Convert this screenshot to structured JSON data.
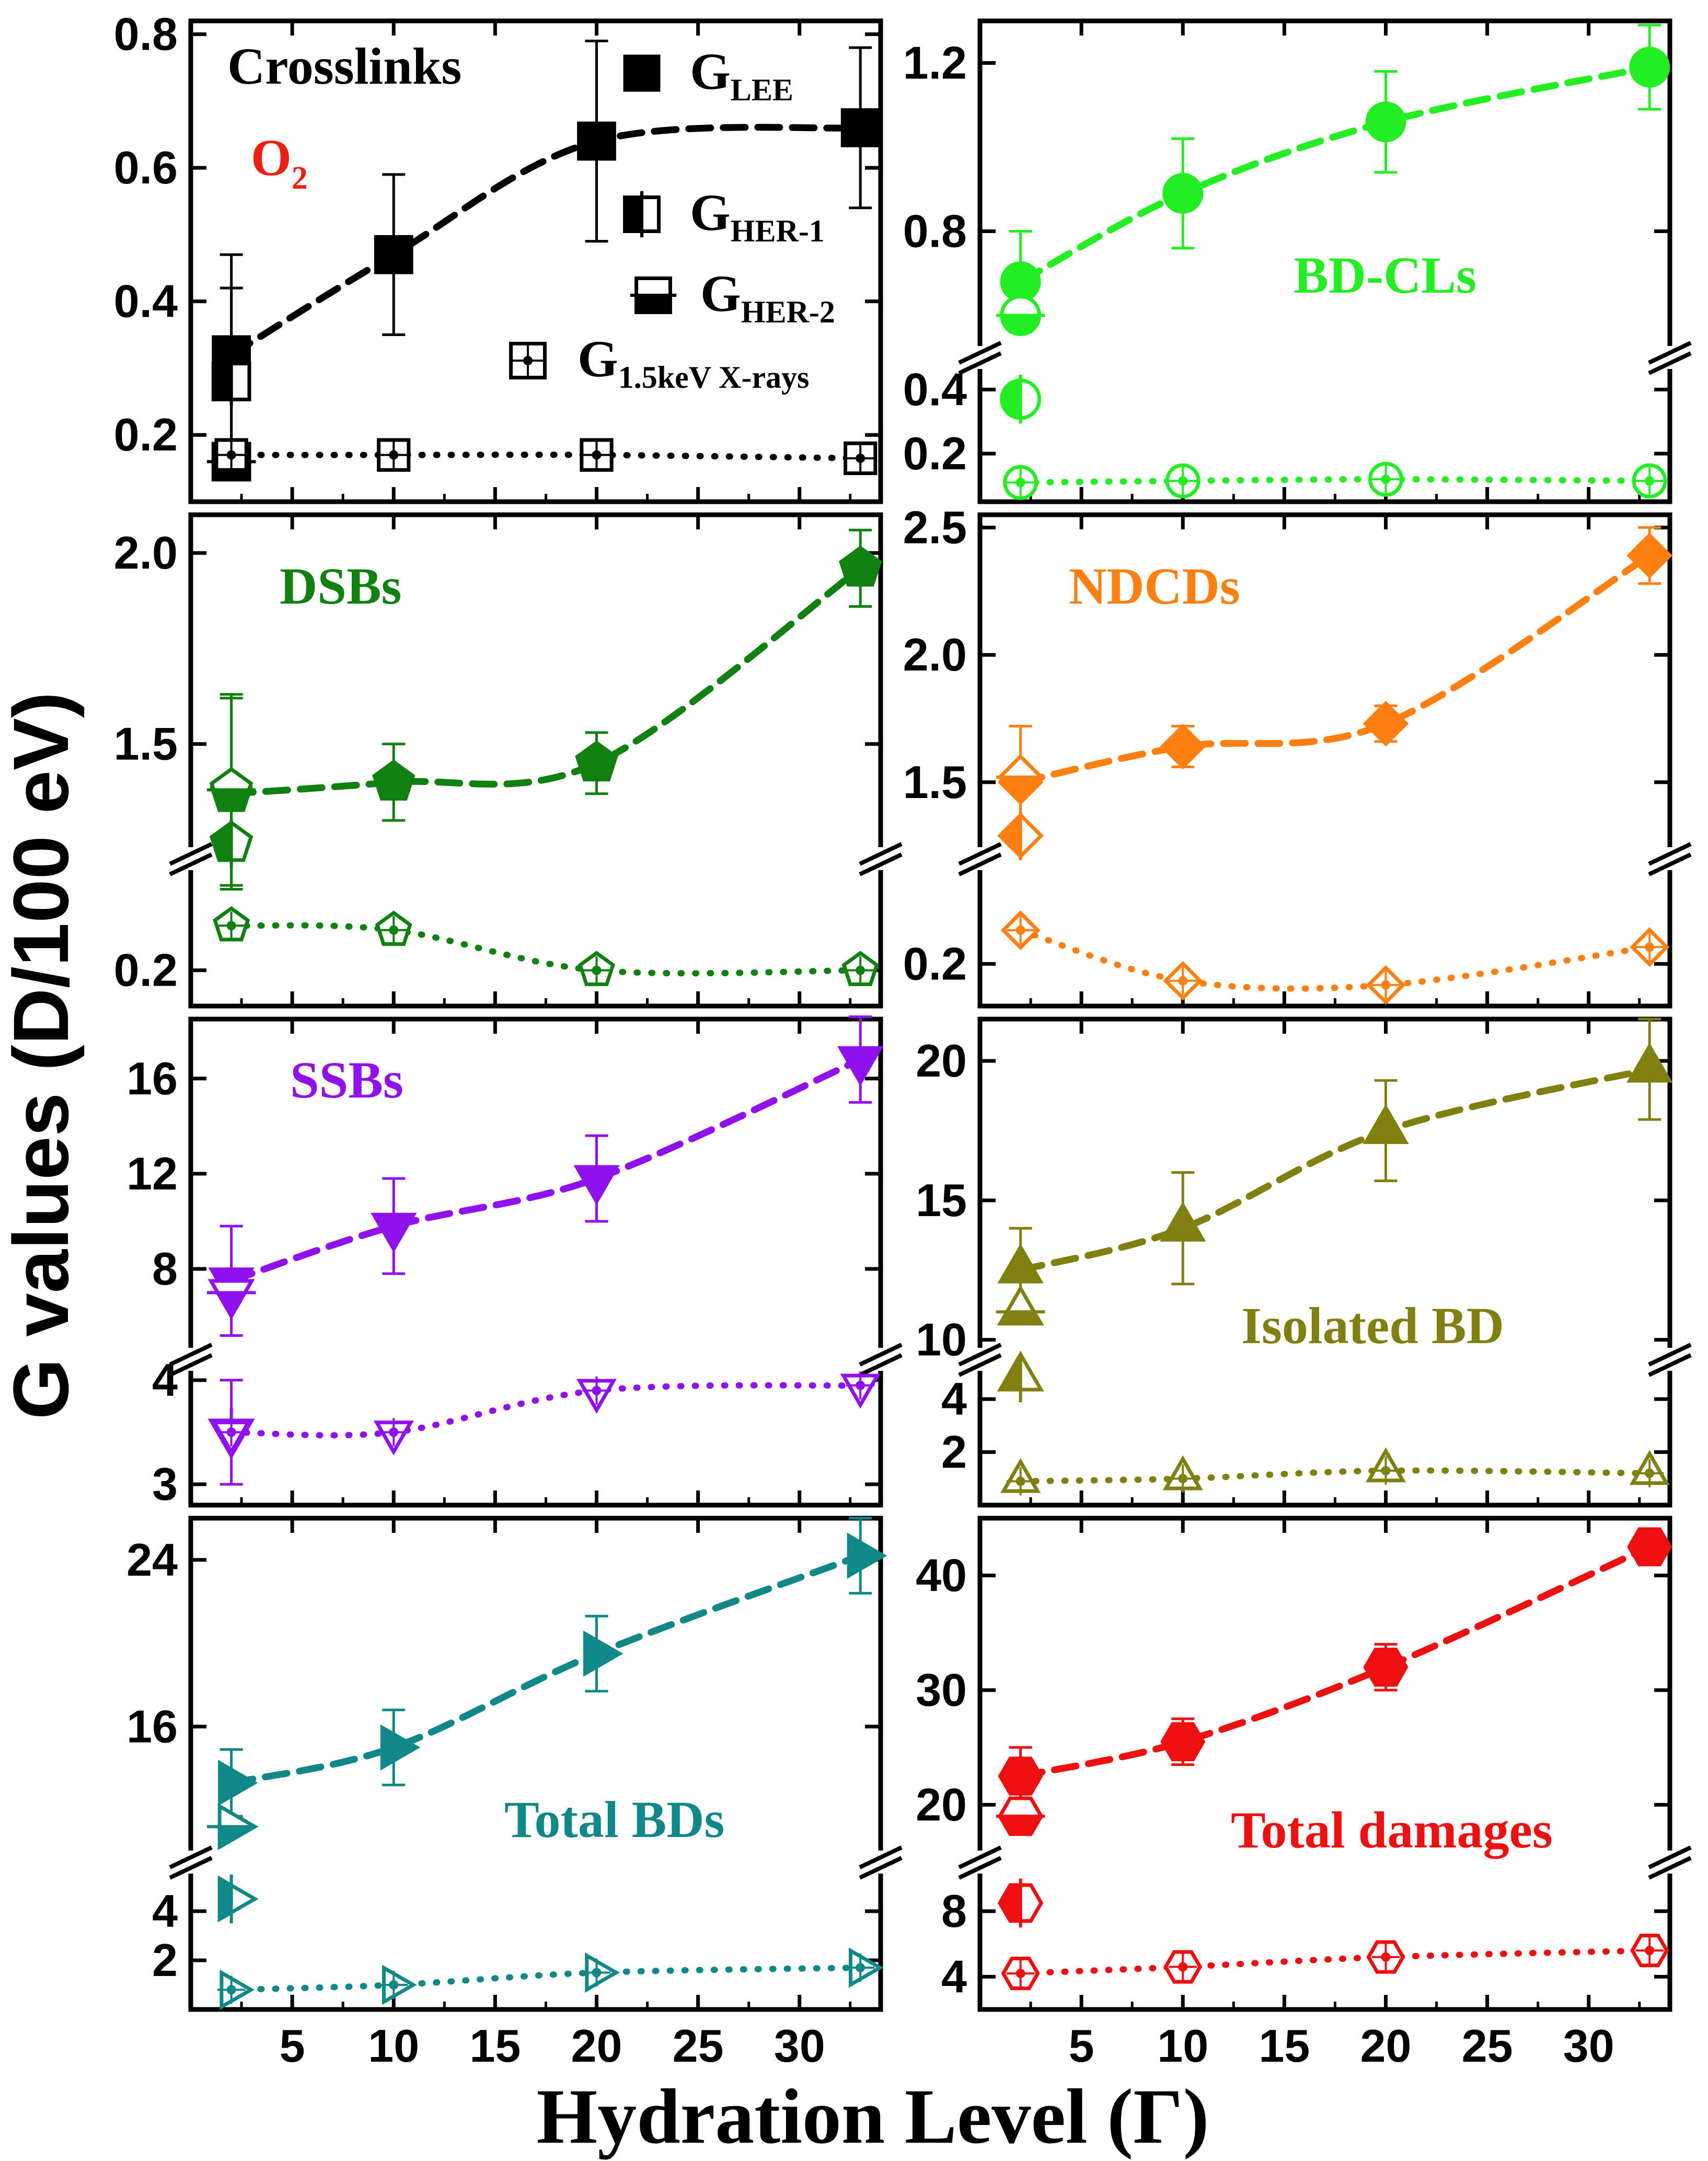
{
  "figure": {
    "ylabel": "G values (D/100 eV)",
    "xlabel": "Hydration Level (Γ)",
    "xticks": [
      5,
      10,
      15,
      20,
      25,
      30
    ],
    "xlim": [
      0,
      34
    ],
    "legend": [
      {
        "name": "LEE",
        "label_main": "G",
        "label_sub": "LEE",
        "fill": "full"
      },
      {
        "name": "HER-1",
        "label_main": "G",
        "label_sub": "HER-1",
        "fill": "left"
      },
      {
        "name": "HER-2",
        "label_main": "G",
        "label_sub": "HER-2",
        "fill": "bottom"
      },
      {
        "name": "1.5keV X-rays",
        "label_main": "G",
        "label_sub": "1.5keV X-rays",
        "fill": "none"
      }
    ],
    "o2_label": "O",
    "o2_sub": "2"
  },
  "chart_data": [
    {
      "id": "crosslinks",
      "type": "scatter",
      "title": "Crosslinks",
      "color": "#000000",
      "marker": "square",
      "broken": false,
      "ylim": [
        0.1,
        0.82
      ],
      "yticks": [
        0.2,
        0.4,
        0.6,
        0.8
      ],
      "ytick_labels": [
        "0.2",
        "0.4",
        "0.6",
        "0.8"
      ],
      "series": [
        {
          "name": "LEE",
          "x": [
            2,
            10,
            20,
            33
          ],
          "y": [
            0.32,
            0.47,
            0.64,
            0.66
          ],
          "err": [
            0.15,
            0.12,
            0.15,
            0.12
          ],
          "fit": "dashed"
        },
        {
          "name": "HER-1",
          "x": [
            2
          ],
          "y": [
            0.28
          ],
          "err": [
            0.14
          ],
          "fit": null
        },
        {
          "name": "HER-2",
          "x": [
            2
          ],
          "y": [
            0.16
          ],
          "err": [
            0.0
          ],
          "fit": null
        },
        {
          "name": "1.5keV X-rays",
          "x": [
            2,
            10,
            20,
            33
          ],
          "y": [
            0.17,
            0.17,
            0.17,
            0.165
          ],
          "err": [
            0,
            0,
            0,
            0
          ],
          "fit": "dotted"
        }
      ]
    },
    {
      "id": "bd-cls",
      "type": "scatter",
      "title": "BD-CLs",
      "color": "#22ee22",
      "marker": "circle",
      "broken": true,
      "ylim_low": [
        0.05,
        0.5
      ],
      "ylim_high": [
        0.5,
        1.3
      ],
      "yticks": [
        0.2,
        0.4,
        0.8,
        1.2
      ],
      "ytick_labels": [
        "0.2",
        "0.4",
        "0.8",
        "1.2"
      ],
      "series": [
        {
          "name": "LEE",
          "x": [
            2,
            10,
            20,
            33
          ],
          "y": [
            0.68,
            0.89,
            1.06,
            1.19
          ],
          "err": [
            0.12,
            0.13,
            0.12,
            0.1
          ],
          "fit": "dashed"
        },
        {
          "name": "HER-1",
          "x": [
            2
          ],
          "y": [
            0.37
          ],
          "err": [
            0.0
          ],
          "fit": null
        },
        {
          "name": "HER-2",
          "x": [
            2
          ],
          "y": [
            0.6
          ],
          "err": [
            0.0
          ],
          "fit": null
        },
        {
          "name": "1.5keV X-rays",
          "x": [
            2,
            10,
            20,
            33
          ],
          "y": [
            0.11,
            0.115,
            0.12,
            0.115
          ],
          "err": [
            0,
            0,
            0,
            0
          ],
          "fit": "dotted"
        }
      ]
    },
    {
      "id": "dsbs",
      "type": "scatter",
      "title": "DSBs",
      "color": "#108010",
      "marker": "pentagon",
      "broken": true,
      "ylim_low": [
        0.12,
        0.45
      ],
      "ylim_high": [
        1.2,
        2.1
      ],
      "yticks": [
        0.2,
        1.5,
        2.0
      ],
      "ytick_labels": [
        "0.2",
        "1.5",
        "2.0"
      ],
      "series": [
        {
          "name": "LEE",
          "x": [
            2,
            10,
            20,
            33
          ],
          "y": [
            1.37,
            1.4,
            1.45,
            1.96
          ],
          "err": [
            0.25,
            0.1,
            0.08,
            0.1
          ],
          "fit": "dashed"
        },
        {
          "name": "HER-1",
          "x": [
            2
          ],
          "y": [
            1.24
          ],
          "err": [
            0.0
          ],
          "fit": null
        },
        {
          "name": "HER-2",
          "x": [
            2
          ],
          "y": [
            1.38
          ],
          "err": [
            0.25
          ],
          "fit": null
        },
        {
          "name": "1.5keV X-rays",
          "x": [
            2,
            10,
            20,
            33
          ],
          "y": [
            0.3,
            0.29,
            0.2,
            0.2
          ],
          "err": [
            0,
            0,
            0,
            0
          ],
          "fit": "dotted"
        }
      ]
    },
    {
      "id": "ndcds",
      "type": "scatter",
      "title": "NDCDs",
      "color": "#ff8010",
      "marker": "diamond",
      "broken": true,
      "ylim_low": [
        0.1,
        0.45
      ],
      "ylim_high": [
        1.2,
        2.55
      ],
      "yticks": [
        0.2,
        1.5,
        2.0,
        2.5
      ],
      "ytick_labels": [
        "0.2",
        "1.5",
        "2.0",
        "2.5"
      ],
      "series": [
        {
          "name": "LEE",
          "x": [
            2,
            10,
            20,
            33
          ],
          "y": [
            1.5,
            1.64,
            1.73,
            2.39
          ],
          "err": [
            0.22,
            0.08,
            0.07,
            0.11
          ],
          "fit": "dashed"
        },
        {
          "name": "HER-1",
          "x": [
            2
          ],
          "y": [
            1.29
          ],
          "err": [
            0.0
          ],
          "fit": null
        },
        {
          "name": "HER-2",
          "x": [
            2
          ],
          "y": [
            1.52
          ],
          "err": [
            0.0
          ],
          "fit": null
        },
        {
          "name": "1.5keV X-rays",
          "x": [
            2,
            10,
            20,
            33
          ],
          "y": [
            0.28,
            0.16,
            0.15,
            0.24
          ],
          "err": [
            0,
            0,
            0,
            0
          ],
          "fit": "dotted"
        }
      ]
    },
    {
      "id": "ssbs",
      "type": "scatter",
      "title": "SSBs",
      "color": "#9010f0",
      "marker": "triangle-down",
      "broken": true,
      "ylim_low": [
        2.8,
        4.2
      ],
      "ylim_high": [
        4.2,
        18.5
      ],
      "yticks": [
        3,
        4,
        8,
        12,
        16
      ],
      "ytick_labels": [
        "3",
        "4",
        "8",
        "12",
        "16"
      ],
      "series": [
        {
          "name": "LEE",
          "x": [
            2,
            10,
            20,
            33
          ],
          "y": [
            7.5,
            9.8,
            11.8,
            16.8
          ],
          "err": [
            2.3,
            2.0,
            1.8,
            1.8
          ],
          "fit": "dashed"
        },
        {
          "name": "HER-1",
          "x": [
            2
          ],
          "y": [
            3.5
          ],
          "err": [
            0.5
          ],
          "fit": null
        },
        {
          "name": "HER-2",
          "x": [
            2
          ],
          "y": [
            7.0
          ],
          "err": [
            0.0
          ],
          "fit": null
        },
        {
          "name": "1.5keV X-rays",
          "x": [
            2,
            10,
            20,
            33
          ],
          "y": [
            3.5,
            3.5,
            3.9,
            3.95
          ],
          "err": [
            0,
            0,
            0,
            0
          ],
          "fit": "dotted"
        }
      ]
    },
    {
      "id": "isolated-bd",
      "type": "scatter",
      "title": "Isolated BD",
      "color": "#808010",
      "marker": "triangle-up",
      "broken": true,
      "ylim_low": [
        0.0,
        5.5
      ],
      "ylim_high": [
        9.3,
        21.5
      ],
      "yticks": [
        2,
        4,
        10,
        15,
        20
      ],
      "ytick_labels": [
        "2",
        "4",
        "10",
        "15",
        "20"
      ],
      "series": [
        {
          "name": "LEE",
          "x": [
            2,
            10,
            20,
            33
          ],
          "y": [
            12.5,
            14.0,
            17.5,
            19.7
          ],
          "err": [
            1.5,
            2.0,
            1.8,
            1.8
          ],
          "fit": "dashed"
        },
        {
          "name": "HER-1",
          "x": [
            2
          ],
          "y": [
            4.8
          ],
          "err": [
            0.0
          ],
          "fit": null
        },
        {
          "name": "HER-2",
          "x": [
            2
          ],
          "y": [
            11.0
          ],
          "err": [
            0.0
          ],
          "fit": null
        },
        {
          "name": "1.5keV X-rays",
          "x": [
            2,
            10,
            20,
            33
          ],
          "y": [
            0.9,
            1.0,
            1.3,
            1.2
          ],
          "err": [
            0,
            0,
            0,
            0
          ],
          "fit": "dotted"
        }
      ]
    },
    {
      "id": "total-bds",
      "type": "scatter",
      "title": "Total BDs",
      "color": "#108888",
      "marker": "triangle-right",
      "broken": true,
      "ylim_low": [
        0.0,
        6.0
      ],
      "ylim_high": [
        9.5,
        26.0
      ],
      "yticks": [
        2,
        4,
        16,
        24
      ],
      "ytick_labels": [
        "2",
        "4",
        "16",
        "24"
      ],
      "series": [
        {
          "name": "LEE",
          "x": [
            2,
            10,
            20,
            33
          ],
          "y": [
            13.3,
            15.0,
            19.5,
            24.2
          ],
          "err": [
            1.6,
            1.8,
            1.8,
            1.8
          ],
          "fit": "dashed"
        },
        {
          "name": "HER-1",
          "x": [
            2
          ],
          "y": [
            4.5
          ],
          "err": [
            0.0
          ],
          "fit": null
        },
        {
          "name": "HER-2",
          "x": [
            2
          ],
          "y": [
            11.2
          ],
          "err": [
            0.0
          ],
          "fit": null
        },
        {
          "name": "1.5keV X-rays",
          "x": [
            2,
            10,
            20,
            33
          ],
          "y": [
            0.8,
            1.0,
            1.5,
            1.7
          ],
          "err": [
            0,
            0,
            0,
            0
          ],
          "fit": "dotted"
        }
      ]
    },
    {
      "id": "total-damages",
      "type": "scatter",
      "title": "Total damages",
      "color": "#ee1010",
      "marker": "hexagon",
      "broken": true,
      "ylim_low": [
        2.0,
        11.0
      ],
      "ylim_high": [
        15.0,
        45.0
      ],
      "yticks": [
        4,
        8,
        20,
        30,
        40
      ],
      "ytick_labels": [
        "4",
        "8",
        "20",
        "30",
        "40"
      ],
      "series": [
        {
          "name": "LEE",
          "x": [
            2,
            10,
            20,
            33
          ],
          "y": [
            22.5,
            25.5,
            32.0,
            42.5
          ],
          "err": [
            2.5,
            2.0,
            2.0,
            1.5
          ],
          "fit": "dashed"
        },
        {
          "name": "HER-1",
          "x": [
            2
          ],
          "y": [
            8.5
          ],
          "err": [
            0.0
          ],
          "fit": null
        },
        {
          "name": "HER-2",
          "x": [
            2
          ],
          "y": [
            19.0
          ],
          "err": [
            0.0
          ],
          "fit": null
        },
        {
          "name": "1.5keV X-rays",
          "x": [
            2,
            10,
            20,
            33
          ],
          "y": [
            4.2,
            4.6,
            5.2,
            5.6
          ],
          "err": [
            0,
            0,
            0,
            0
          ],
          "fit": "dotted"
        }
      ]
    }
  ]
}
